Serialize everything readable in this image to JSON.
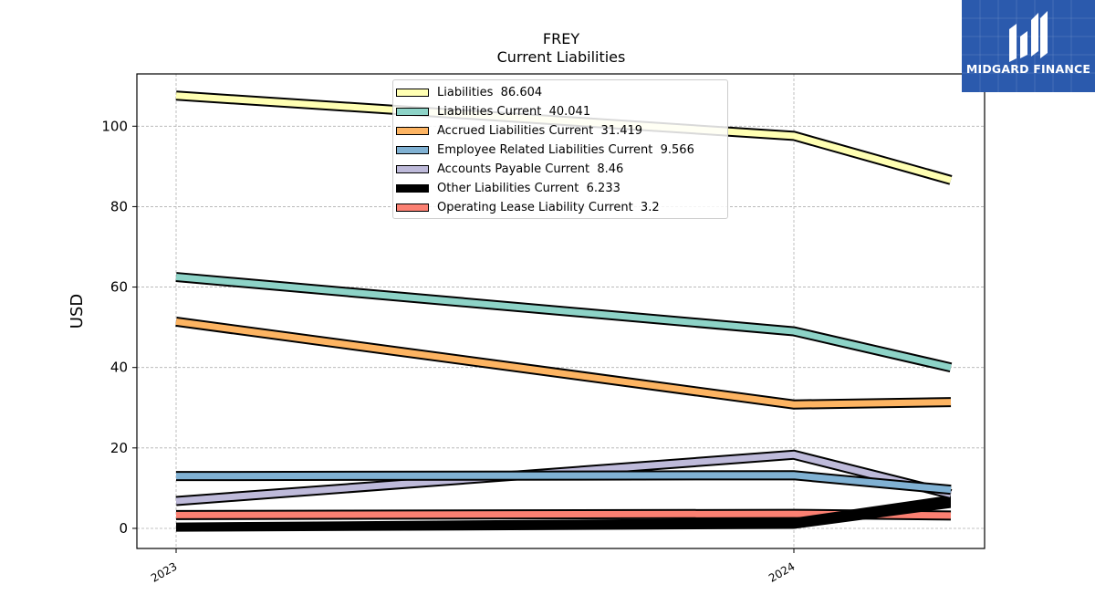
{
  "chart_data": {
    "type": "line",
    "title": "FREY",
    "subtitle": "Current  Liabilities",
    "xlabel": "",
    "ylabel": "USD",
    "x_tick_labels": [
      "2023",
      "2024"
    ],
    "x": [
      "2023-01",
      "2024-01",
      "2024-04"
    ],
    "ylim": [
      -5,
      113
    ],
    "yticks": [
      0,
      20,
      40,
      60,
      80,
      100
    ],
    "grid": true,
    "legend_position": "top-center",
    "series": [
      {
        "name": "Liabilities",
        "label_value": "86.604",
        "values": [
          107.6,
          97.6,
          86.6
        ],
        "color": "#ffffb3"
      },
      {
        "name": "Liabilities Current",
        "label_value": "40.041",
        "values": [
          62.5,
          49.0,
          40.0
        ],
        "color": "#8dd3c7"
      },
      {
        "name": "Accrued Liabilities Current",
        "label_value": "31.419",
        "values": [
          51.4,
          30.8,
          31.4
        ],
        "color": "#fdb462"
      },
      {
        "name": "Employee Related Liabilities Current",
        "label_value": "9.566",
        "values": [
          13.0,
          13.2,
          9.6
        ],
        "color": "#80b1d3"
      },
      {
        "name": "Accounts Payable Current",
        "label_value": "8.46",
        "values": [
          6.8,
          18.3,
          8.5
        ],
        "color": "#bebada"
      },
      {
        "name": "Other Liabilities Current",
        "label_value": "6.233",
        "values": [
          0.3,
          1.0,
          6.2
        ],
        "color": "#000000"
      },
      {
        "name": "Operating Lease Liability Current",
        "label_value": "3.2",
        "values": [
          3.3,
          3.6,
          3.2
        ],
        "color": "#fb8072"
      }
    ]
  },
  "legend_labels": [
    "Liabilities  86.604",
    "Liabilities Current  40.041",
    "Accrued Liabilities Current  31.419",
    "Employee Related Liabilities Current  9.566",
    "Accounts Payable Current  8.46",
    "Other Liabilities Current  6.233",
    "Operating Lease Liability Current  3.2"
  ],
  "logo": {
    "text": "MIDGARD FINANCE"
  }
}
